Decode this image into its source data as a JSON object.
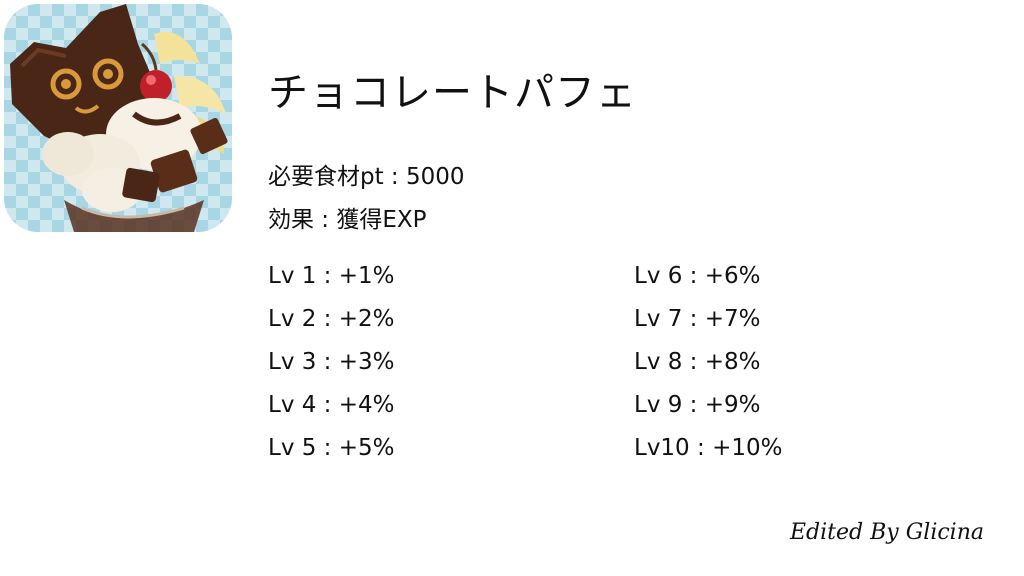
{
  "item": {
    "icon": "chocolate-parfait-icon",
    "name": "チョコレートパフェ",
    "cost_line": "必要食材pt : 5000",
    "effect_line": "効果 : 獲得EXP"
  },
  "levels_left": [
    {
      "label": "Lv 1 : +1%"
    },
    {
      "label": "Lv 2 : +2%"
    },
    {
      "label": "Lv 3 : +3%"
    },
    {
      "label": "Lv 4 : +4%"
    },
    {
      "label": "Lv 5 : +5%"
    }
  ],
  "levels_right": [
    {
      "label": "Lv 6  : +6%"
    },
    {
      "label": "Lv 7  : +7%"
    },
    {
      "label": "Lv 8  : +8%"
    },
    {
      "label": "Lv 9  : +9%"
    },
    {
      "label": "Lv10 : +10%"
    }
  ],
  "credit": "Edited By Glicina",
  "colors": {
    "icon_background": "#a8d6e2",
    "chocolate": "#4a2616",
    "text": "#111111"
  }
}
